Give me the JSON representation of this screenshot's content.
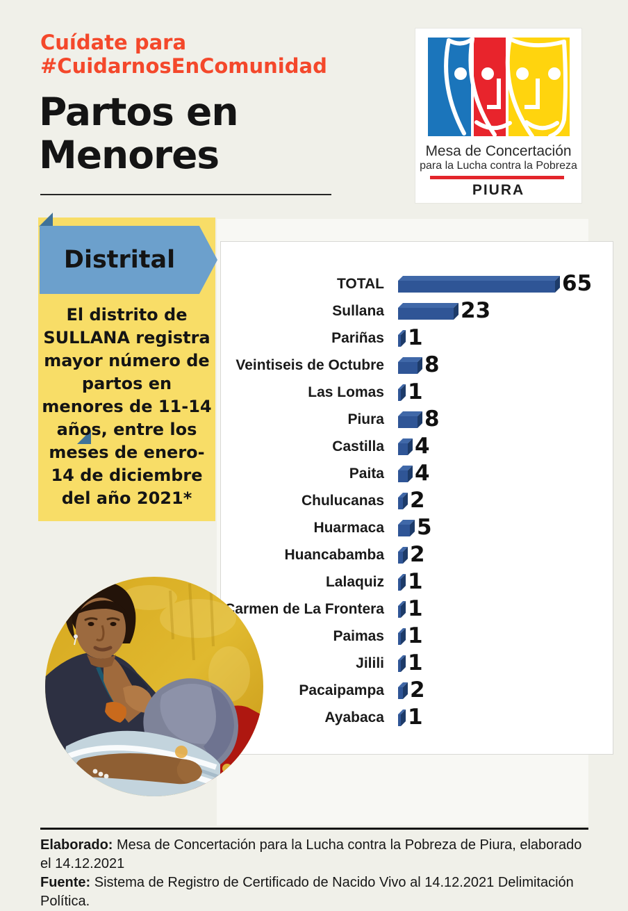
{
  "header": {
    "tagline": "Cuídate para\n#CuidarnosEnComunidad",
    "title": "Partos en\nMenores",
    "tagline_color": "#F4482B"
  },
  "logo": {
    "org_line1": "Mesa de Concertación",
    "org_line2": "para la Lucha contra la Pobreza",
    "region": "PIURA",
    "colors": {
      "blue": "#1B75BB",
      "red": "#E8242C",
      "yellow": "#FFD40E",
      "bar_red": "#E3252B"
    }
  },
  "callout": {
    "banner_label": "Distrital",
    "body_text": "El distrito de\nSULLANA registra\nmayor número de\npartos en\nmenores de 11-14\naños, entre los\nmeses de enero-\n14 de diciembre\ndel año 2021*",
    "banner_color": "#6CA0CC",
    "fold_color": "#3F7299",
    "box_color": "#F8DD67"
  },
  "photo": {
    "description": "madre adolescente amamantando a su bebé frente a una pared amarilla"
  },
  "chart_data": {
    "type": "bar",
    "orientation": "horizontal",
    "title": "",
    "xlabel": "",
    "ylabel": "",
    "categories": [
      "TOTAL",
      "Sullana",
      "Pariñas",
      "Veintiseis de Octubre",
      "Las Lomas",
      "Piura",
      "Castilla",
      "Paita",
      "Chulucanas",
      "Huarmaca",
      "Huancabamba",
      "Lalaquiz",
      "Carmen de La Frontera",
      "Paimas",
      "Jilili",
      "Pacaipampa",
      "Ayabaca"
    ],
    "values": [
      65,
      23,
      1,
      8,
      1,
      8,
      4,
      4,
      2,
      5,
      2,
      1,
      1,
      1,
      1,
      2,
      1
    ],
    "xlim": [
      0,
      65
    ],
    "gridlines": false,
    "data_labels": true,
    "legend": "none",
    "colors": {
      "front": "#2F5596",
      "top": "#4068A8",
      "side": "#1D3B69"
    }
  },
  "footer": {
    "line1_label": "Elaborado:",
    "line1_text": " Mesa de Concertación para la Lucha contra la Pobreza de Piura, elaborado el 14.12.2021",
    "line2_label": "Fuente:",
    "line2_text": " Sistema de Registro de Certificado de Nacido Vivo al 14.12.2021 Delimitación Política."
  }
}
